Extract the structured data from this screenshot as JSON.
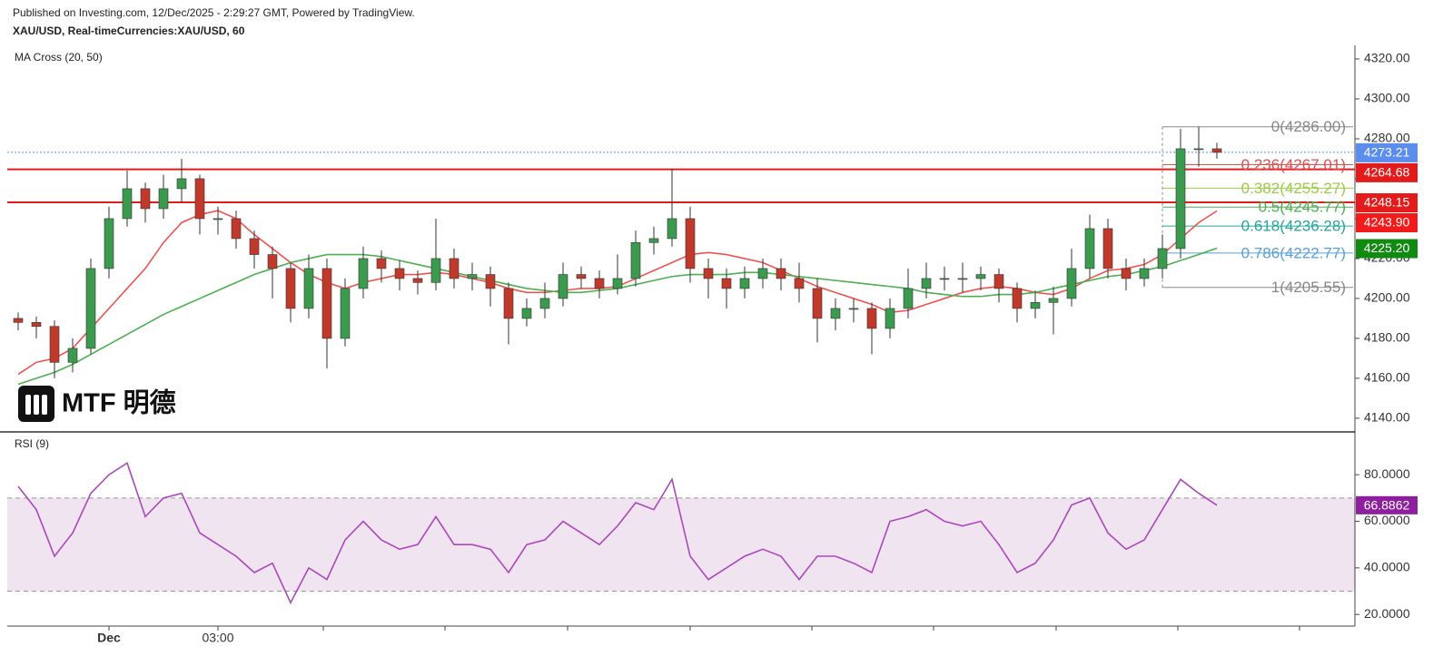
{
  "chart_data": [
    {
      "type": "candlestick",
      "subtitle": "Published on Investing.com, 12/Dec/2025 - 2:29:27 GMT, Powered by TradingView.",
      "title": "XAU/USD, Real-timeCurrencies:XAU/USD, 60",
      "indicator_label": "MA Cross (20, 50)",
      "watermark": "MTF 明德",
      "categories": [
        null,
        null,
        null,
        null,
        null,
        "Dec",
        null,
        null,
        null,
        null,
        null,
        "03:00",
        null,
        null,
        null,
        null,
        null,
        null,
        null,
        null,
        null,
        null,
        null,
        null,
        null,
        null,
        null,
        null,
        null,
        null,
        null,
        null,
        null,
        null,
        null,
        null,
        null,
        null,
        null,
        null,
        null,
        null,
        null,
        null,
        null,
        null,
        null,
        null,
        null,
        null,
        null,
        null,
        null,
        null,
        null,
        null,
        null,
        null,
        null,
        null,
        null,
        null,
        null,
        null,
        null,
        null,
        null
      ],
      "open": [
        4190,
        4188,
        4186,
        4168,
        4175,
        4215,
        4240,
        4255,
        4245,
        4255,
        4260,
        4240,
        4240,
        4230,
        4222,
        4215,
        4195,
        4215,
        4180,
        4205,
        4220,
        4215,
        4210,
        4208,
        4220,
        4210,
        4212,
        4205,
        4190,
        4195,
        4200,
        4212,
        4210,
        4205,
        4210,
        4228,
        4230,
        4240,
        4215,
        4210,
        4205,
        4210,
        4215,
        4210,
        4205,
        4190,
        4195,
        4195,
        4185,
        4195,
        4205,
        4210,
        4210,
        4210,
        4212,
        4205,
        4195,
        4198,
        4200,
        4215,
        4235,
        4215,
        4210,
        4215,
        4225,
        4275,
        4275
      ],
      "high": [
        4193,
        4191,
        4189,
        4180,
        4220,
        4246,
        4264,
        4258,
        4262,
        4270,
        4262,
        4246,
        4244,
        4234,
        4226,
        4218,
        4222,
        4220,
        4210,
        4226,
        4224,
        4219,
        4214,
        4240,
        4225,
        4218,
        4216,
        4208,
        4200,
        4208,
        4218,
        4216,
        4214,
        4222,
        4234,
        4236,
        4265,
        4246,
        4220,
        4215,
        4216,
        4220,
        4220,
        4218,
        4210,
        4200,
        4200,
        4198,
        4200,
        4215,
        4218,
        4216,
        4218,
        4216,
        4215,
        4208,
        4204,
        4206,
        4225,
        4242,
        4240,
        4220,
        4220,
        4232,
        4285,
        4286,
        4278
      ],
      "low": [
        4184,
        4180,
        4160,
        4163,
        4172,
        4210,
        4236,
        4238,
        4240,
        4248,
        4232,
        4232,
        4225,
        4215,
        4200,
        4188,
        4190,
        4165,
        4176,
        4200,
        4208,
        4204,
        4202,
        4204,
        4205,
        4204,
        4196,
        4177,
        4186,
        4190,
        4196,
        4205,
        4200,
        4202,
        4206,
        4222,
        4226,
        4208,
        4200,
        4195,
        4200,
        4205,
        4204,
        4198,
        4178,
        4184,
        4188,
        4172,
        4180,
        4190,
        4200,
        4204,
        4203,
        4204,
        4198,
        4188,
        4190,
        4182,
        4196,
        4210,
        4210,
        4204,
        4206,
        4210,
        4220,
        4266,
        4270
      ],
      "close": [
        4188,
        4186,
        4168,
        4175,
        4215,
        4240,
        4255,
        4245,
        4255,
        4260,
        4240,
        4240,
        4230,
        4222,
        4215,
        4195,
        4215,
        4180,
        4205,
        4220,
        4215,
        4210,
        4208,
        4220,
        4210,
        4212,
        4205,
        4190,
        4195,
        4200,
        4212,
        4210,
        4205,
        4210,
        4228,
        4230,
        4240,
        4215,
        4210,
        4205,
        4210,
        4215,
        4210,
        4205,
        4190,
        4195,
        4195,
        4185,
        4195,
        4205,
        4210,
        4210,
        4210,
        4212,
        4205,
        4195,
        4198,
        4200,
        4215,
        4235,
        4215,
        4210,
        4215,
        4225,
        4275,
        4275,
        4273.21
      ],
      "up_color": "#3a9a4e",
      "down_color": "#c0392b",
      "overlays": [
        {
          "color": "#ef5350",
          "last_label": "4243.90",
          "values": [
            4162,
            4168,
            4170,
            4175,
            4185,
            4195,
            4205,
            4215,
            4228,
            4238,
            4242,
            4244,
            4240,
            4232,
            4225,
            4218,
            4212,
            4208,
            4205,
            4208,
            4210,
            4212,
            4212,
            4213,
            4212,
            4210,
            4208,
            4205,
            4203,
            4203,
            4204,
            4205,
            4205,
            4206,
            4210,
            4214,
            4218,
            4222,
            4223,
            4222,
            4220,
            4218,
            4214,
            4210,
            4206,
            4203,
            4200,
            4197,
            4193,
            4194,
            4197,
            4200,
            4203,
            4205,
            4206,
            4205,
            4203,
            4202,
            4205,
            4210,
            4214,
            4215,
            4217,
            4222,
            4230,
            4238,
            4243.9
          ]
        },
        {
          "color": "#4caf50",
          "last_label": "4225.20",
          "values": [
            4157,
            4160,
            4163,
            4167,
            4172,
            4177,
            4182,
            4187,
            4192,
            4196,
            4200,
            4204,
            4208,
            4212,
            4215,
            4218,
            4220,
            4222,
            4222,
            4222,
            4221,
            4219,
            4217,
            4215,
            4213,
            4211,
            4209,
            4207,
            4205,
            4204,
            4203,
            4203,
            4204,
            4205,
            4207,
            4209,
            4211,
            4212,
            4212,
            4212,
            4213,
            4213,
            4212,
            4211,
            4210,
            4209,
            4208,
            4207,
            4206,
            4205,
            4203,
            4202,
            4201,
            4201,
            4202,
            4202,
            4203,
            4205,
            4207,
            4209,
            4211,
            4212,
            4214,
            4216,
            4219,
            4222,
            4225.2
          ]
        }
      ],
      "overlay_badge_colors": [
        "#f21b1b",
        "#118a11"
      ],
      "price_lines": [
        {
          "value": 4273.21,
          "label": "4273.21",
          "color": "#5b8def",
          "style": "dotted"
        },
        {
          "value": 4264.68,
          "label": "4264.68",
          "color": "#e31b1b",
          "style": "solid"
        },
        {
          "value": 4248.15,
          "label": "4248.15",
          "color": "#e31b1b",
          "style": "solid"
        }
      ],
      "fib_levels": [
        {
          "value": 4286.0,
          "label": "0(4286.00)",
          "color": "#888888"
        },
        {
          "value": 4267.01,
          "label": "0.236(4267.01)",
          "color": "#e05050"
        },
        {
          "value": 4255.27,
          "label": "0.382(4255.27)",
          "color": "#9ccc45"
        },
        {
          "value": 4245.77,
          "label": "0.5(4245.77)",
          "color": "#4caf50"
        },
        {
          "value": 4236.28,
          "label": "0.618(4236.28)",
          "color": "#26a69a"
        },
        {
          "value": 4222.77,
          "label": "0.786(4222.77)",
          "color": "#5a9fd8"
        },
        {
          "value": 4205.55,
          "label": "1(4205.55)",
          "color": "#888888"
        }
      ],
      "ylim": [
        4133.6,
        4326.8
      ],
      "yticks": [
        {
          "value": 4140,
          "label": "4140.00"
        },
        {
          "value": 4160,
          "label": "4160.00"
        },
        {
          "value": 4180,
          "label": "4180.00"
        },
        {
          "value": 4200,
          "label": "4200.00"
        },
        {
          "value": 4220,
          "label": "4220.00"
        },
        {
          "value": 4240,
          "label": "4240.00"
        },
        {
          "value": 4260,
          "label": "4260.00"
        },
        {
          "value": 4280,
          "label": "4280.00"
        },
        {
          "value": 4300,
          "label": "4300.00"
        },
        {
          "value": 4320,
          "label": "4320.00"
        }
      ]
    },
    {
      "type": "line",
      "title": "RSI (9)",
      "color": "#ab47bc",
      "values": [
        75,
        65,
        45,
        55,
        72,
        80,
        85,
        62,
        70,
        72,
        55,
        50,
        45,
        38,
        42,
        25,
        40,
        35,
        52,
        60,
        52,
        48,
        50,
        62,
        50,
        50,
        48,
        38,
        50,
        52,
        60,
        55,
        50,
        58,
        68,
        65,
        78,
        45,
        35,
        40,
        45,
        48,
        45,
        35,
        45,
        45,
        42,
        38,
        60,
        62,
        65,
        60,
        58,
        60,
        50,
        38,
        42,
        52,
        67,
        70,
        55,
        48,
        52,
        65,
        78,
        72,
        66.8862
      ],
      "last_label": "66.8862",
      "badge_color": "#8e1f9e",
      "band": [
        30,
        70
      ],
      "band_color": "#f1e4f1",
      "ylim": [
        15,
        98
      ],
      "yticks": [
        {
          "value": 20,
          "label": "20.0000"
        },
        {
          "value": 40,
          "label": "40.0000"
        },
        {
          "value": 60,
          "label": "60.0000"
        },
        {
          "value": 80,
          "label": "80.0000"
        }
      ]
    }
  ]
}
